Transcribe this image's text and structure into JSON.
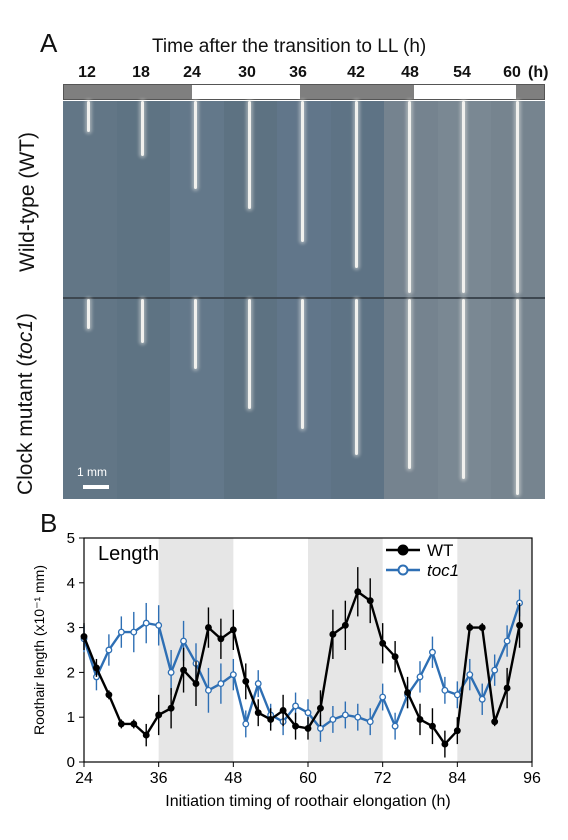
{
  "panel_a": {
    "letter": "A",
    "title": "Time after the transition to LL (h)",
    "time_ticks": [
      "12",
      "18",
      "24",
      "30",
      "36",
      "42",
      "48",
      "54",
      "60"
    ],
    "time_unit": "(h)",
    "light_bar": [
      {
        "state": "dark",
        "color": "#7f7f7f"
      },
      {
        "state": "light",
        "color": "#ffffff"
      },
      {
        "state": "dark",
        "color": "#7f7f7f"
      },
      {
        "state": "light",
        "color": "#ffffff"
      },
      {
        "state": "dark",
        "color": "#7f7f7f"
      }
    ],
    "row_wt": "Wild-type (WT)",
    "row_mut_prefix": "Clock mutant (",
    "row_mut_gene": "toc1",
    "row_mut_suffix": ")",
    "scale_bar": "1 mm",
    "root_lengths_wt": [
      0.16,
      0.28,
      0.45,
      0.55,
      0.72,
      0.85,
      0.98,
      0.98,
      0.98
    ],
    "root_lengths_mut": [
      0.15,
      0.22,
      0.35,
      0.55,
      0.65,
      0.78,
      0.85,
      0.9,
      0.98
    ]
  },
  "panel_b": {
    "letter": "B",
    "inset_label": "Length"
  },
  "chart_data": {
    "type": "line",
    "title": "",
    "xlabel": "Initiation timing of roothair elongation (h)",
    "ylabel": "Roothair length (x10⁻¹ mm)",
    "xlim": [
      24,
      96
    ],
    "ylim": [
      0,
      5
    ],
    "xticks": [
      24,
      36,
      48,
      60,
      72,
      84,
      96
    ],
    "yticks": [
      0,
      1,
      2,
      3,
      4,
      5
    ],
    "shaded_intervals": [
      [
        36,
        48
      ],
      [
        60,
        72
      ],
      [
        84,
        96
      ]
    ],
    "shade_color": "#e6e6e6",
    "legend_position": "top-right",
    "series": [
      {
        "name": "WT",
        "color": "#000000",
        "marker": "filled-circle",
        "x": [
          24,
          26,
          28,
          30,
          32,
          34,
          36,
          38,
          40,
          42,
          44,
          46,
          48,
          50,
          52,
          54,
          56,
          58,
          60,
          62,
          64,
          66,
          68,
          70,
          72,
          74,
          76,
          78,
          80,
          82,
          84,
          86,
          88,
          90,
          92,
          94
        ],
        "y": [
          2.8,
          2.1,
          1.5,
          0.85,
          0.85,
          0.6,
          1.05,
          1.2,
          2.05,
          1.75,
          3.0,
          2.75,
          2.95,
          1.8,
          1.1,
          0.95,
          1.15,
          0.8,
          0.75,
          1.2,
          2.85,
          3.05,
          3.8,
          3.6,
          2.65,
          2.35,
          1.55,
          0.95,
          0.8,
          0.4,
          0.7,
          3.0,
          3.0,
          0.9,
          1.65,
          3.05
        ]
      },
      {
        "name": "toc1",
        "color": "#2e6fb4",
        "marker": "open-circle",
        "x": [
          24,
          26,
          28,
          30,
          32,
          34,
          36,
          38,
          40,
          42,
          44,
          46,
          48,
          50,
          52,
          54,
          56,
          58,
          60,
          62,
          64,
          66,
          68,
          70,
          72,
          74,
          76,
          78,
          80,
          82,
          84,
          86,
          88,
          90,
          92,
          94
        ],
        "y": [
          2.75,
          1.9,
          2.5,
          2.9,
          2.9,
          3.1,
          3.05,
          2.0,
          2.7,
          2.2,
          1.6,
          1.75,
          1.95,
          0.85,
          1.75,
          1.05,
          0.9,
          1.25,
          1.1,
          0.75,
          0.95,
          1.05,
          1.0,
          0.9,
          1.45,
          0.8,
          1.5,
          1.9,
          2.45,
          1.6,
          1.5,
          1.95,
          1.4,
          2.05,
          2.7,
          3.55
        ]
      }
    ],
    "errors": {
      "WT": [
        0.3,
        0.2,
        0.1,
        0.1,
        0.1,
        0.25,
        0.45,
        0.45,
        0.5,
        0.5,
        0.45,
        0.45,
        0.45,
        0.4,
        0.3,
        0.25,
        0.35,
        0.3,
        0.25,
        0.4,
        0.55,
        0.55,
        0.55,
        0.5,
        0.45,
        0.35,
        0.35,
        0.35,
        0.4,
        0.3,
        0.3,
        0.1,
        0.1,
        0.1,
        0.45,
        0.5
      ],
      "toc1": [
        0.3,
        0.3,
        0.35,
        0.35,
        0.45,
        0.45,
        0.45,
        0.5,
        0.45,
        0.45,
        0.5,
        0.45,
        0.35,
        0.3,
        0.3,
        0.25,
        0.3,
        0.3,
        0.3,
        0.3,
        0.3,
        0.3,
        0.3,
        0.3,
        0.3,
        0.3,
        0.3,
        0.35,
        0.35,
        0.3,
        0.3,
        0.35,
        0.35,
        0.35,
        0.35,
        0.3
      ]
    }
  }
}
